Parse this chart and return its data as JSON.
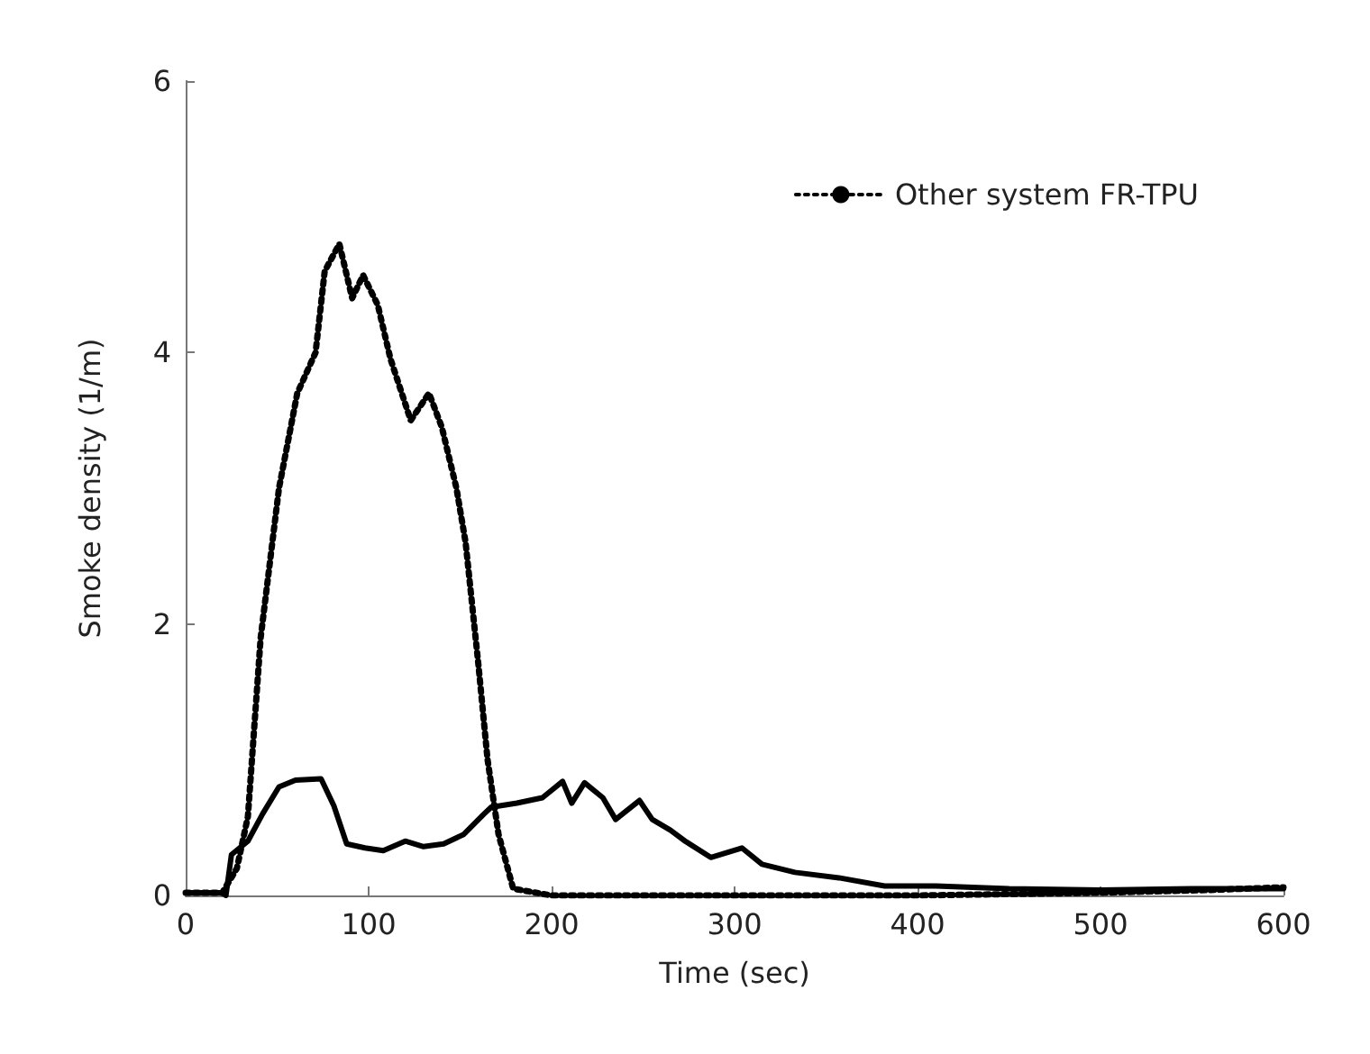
{
  "chart_data": {
    "type": "line",
    "xlabel": "Time (sec)",
    "ylabel": "Smoke density (1/m)",
    "xlim": [
      0,
      600
    ],
    "xticks": [
      0,
      100,
      200,
      300,
      400,
      500,
      600
    ],
    "ylim": [
      0,
      6
    ],
    "yticks": [
      0,
      2,
      4,
      6
    ],
    "grid": false,
    "legend": "top right",
    "marker": "none",
    "series": [
      {
        "color": "#000000",
        "line_style": "solid",
        "x": [
          0,
          10,
          20,
          22,
          25,
          34,
          42,
          51,
          60,
          74,
          81,
          88,
          98,
          108,
          120,
          130,
          141,
          152,
          163,
          167,
          181,
          195,
          206,
          211,
          218,
          228,
          235,
          248,
          255,
          265,
          273,
          287,
          304,
          315,
          333,
          357,
          382,
          410,
          450,
          500,
          550,
          600
        ],
        "values": [
          0.02,
          0.02,
          0.02,
          0.0,
          0.3,
          0.4,
          0.6,
          0.8,
          0.85,
          0.86,
          0.66,
          0.38,
          0.35,
          0.33,
          0.4,
          0.36,
          0.38,
          0.45,
          0.6,
          0.65,
          0.68,
          0.72,
          0.84,
          0.68,
          0.83,
          0.72,
          0.56,
          0.7,
          0.56,
          0.48,
          0.4,
          0.28,
          0.35,
          0.23,
          0.17,
          0.13,
          0.07,
          0.07,
          0.05,
          0.04,
          0.05,
          0.05
        ]
      },
      {
        "name": "Other system FR-TPU",
        "color": "#000000",
        "line_style": "dotted",
        "x": [
          0,
          20,
          28,
          34,
          41,
          51,
          61,
          71,
          76,
          84,
          91,
          97,
          105,
          112,
          123,
          133,
          140,
          148,
          153,
          160,
          165,
          171,
          179,
          200,
          300,
          400,
          500,
          560,
          600
        ],
        "values": [
          0.02,
          0.02,
          0.2,
          0.58,
          1.9,
          3.0,
          3.7,
          4.0,
          4.6,
          4.8,
          4.4,
          4.57,
          4.35,
          3.95,
          3.5,
          3.7,
          3.45,
          3.0,
          2.6,
          1.7,
          1.0,
          0.45,
          0.05,
          0.0,
          0.0,
          0.0,
          0.02,
          0.04,
          0.06
        ]
      }
    ]
  }
}
